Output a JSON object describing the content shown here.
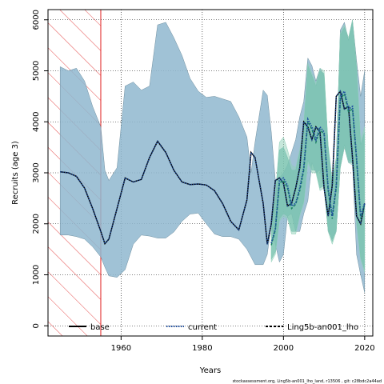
{
  "chart_data": {
    "type": "line",
    "xlabel": "Years",
    "ylabel": "Recruits (age 3)",
    "xlim": [
      1942,
      2022
    ],
    "ylim": [
      -200,
      6200
    ],
    "x_ticks": [
      "1960",
      "1980",
      "2000",
      "2020"
    ],
    "y_ticks": [
      "0",
      "1000",
      "2000",
      "3000",
      "4000",
      "5000",
      "6000"
    ],
    "grid": true,
    "legend_position": "bottom",
    "hatched_region": {
      "x_start": 1942,
      "x_end": 1955,
      "color": "#e02020"
    },
    "footnote": "stockassessment.org, Ling5b-an001_lho_land, r13506 , git: c28bdc2a44ad",
    "colors": {
      "base_band": "#8fb7cf",
      "base_band_edge": "#6f8fa0",
      "current_band": "#5fb3a6",
      "other_band": "#8fcfb8",
      "base_line": "#000000",
      "current_line": "#1f4fa0",
      "other_line": "#1a8060"
    },
    "series": [
      {
        "name": "base",
        "line_style": "solid",
        "x": [
          1945,
          1947,
          1949,
          1951,
          1953,
          1955,
          1956,
          1957,
          1959,
          1961,
          1963,
          1965,
          1967,
          1969,
          1971,
          1973,
          1975,
          1977,
          1979,
          1981,
          1983,
          1985,
          1987,
          1989,
          1991,
          1992,
          1993,
          1995,
          1996,
          1997,
          1998,
          1999,
          2000,
          2001,
          2002,
          2003,
          2004,
          2005,
          2006,
          2007,
          2008,
          2009,
          2010,
          2011,
          2012,
          2013,
          2014,
          2015,
          2016,
          2017,
          2018,
          2019,
          2020
        ],
        "mid": [
          3020,
          3000,
          2930,
          2700,
          2300,
          1850,
          1610,
          1700,
          2300,
          2900,
          2820,
          2870,
          3300,
          3620,
          3400,
          3050,
          2820,
          2770,
          2780,
          2760,
          2650,
          2400,
          2050,
          1880,
          2470,
          3400,
          3300,
          2400,
          1600,
          2000,
          2850,
          2900,
          2800,
          2350,
          2400,
          2700,
          3100,
          4000,
          3900,
          3650,
          3900,
          3800,
          2700,
          2150,
          2750,
          4500,
          4600,
          4250,
          4300,
          3300,
          2150,
          2000,
          2400
        ],
        "upper": [
          5080,
          5000,
          5050,
          4800,
          4300,
          3900,
          3050,
          2850,
          3100,
          4700,
          4780,
          4620,
          4700,
          5900,
          5950,
          5650,
          5300,
          4850,
          4600,
          4480,
          4500,
          4450,
          4400,
          4100,
          3700,
          3000,
          3600,
          4620,
          4520,
          3800,
          2850,
          2900,
          3000,
          3150,
          3400,
          3650,
          4100,
          4400,
          5250,
          5100,
          4800,
          5050,
          4900,
          3500,
          2800,
          3300,
          5800,
          5950,
          5600,
          6000,
          5200,
          4500,
          5000
        ],
        "lower": [
          1780,
          1780,
          1750,
          1700,
          1550,
          1350,
          1150,
          980,
          950,
          1100,
          1600,
          1780,
          1760,
          1720,
          1720,
          1840,
          2050,
          2190,
          2210,
          2000,
          1800,
          1750,
          1750,
          1700,
          1500,
          1350,
          1200,
          1200,
          1400,
          2000,
          1600,
          1250,
          1400,
          2150,
          2200,
          1850,
          1850,
          2200,
          2450,
          3200,
          3000,
          3050,
          2700,
          1850,
          1700,
          1850,
          3100,
          3500,
          3200,
          3200,
          1400,
          1000,
          650
        ]
      },
      {
        "name": "current",
        "line_style": "dotted",
        "x": [
          1997,
          1998,
          1999,
          2000,
          2001,
          2002,
          2003,
          2004,
          2005,
          2006,
          2007,
          2008,
          2009,
          2010,
          2011,
          2012,
          2013,
          2014,
          2015,
          2016,
          2017,
          2018,
          2019,
          2020
        ],
        "mid": [
          1620,
          1900,
          2850,
          2900,
          2750,
          2350,
          2400,
          2700,
          3100,
          4050,
          3900,
          3650,
          3900,
          3800,
          2700,
          2150,
          2750,
          4500,
          4600,
          4250,
          4300,
          3300,
          2150,
          2400
        ],
        "upper": [
          2000,
          2500,
          3450,
          3500,
          3300,
          3050,
          3050,
          3400,
          3900,
          5100,
          4900,
          4700,
          5000,
          4950,
          3500,
          2800,
          3250,
          5700,
          5850,
          5600,
          5950,
          5000,
          3550,
          3800
        ],
        "lower": [
          1300,
          1450,
          2100,
          2200,
          2150,
          1850,
          1850,
          2200,
          2450,
          3250,
          3050,
          3050,
          2700,
          2750,
          1900,
          1650,
          1900,
          3150,
          3550,
          3250,
          3200,
          2050,
          1350,
          1100
        ]
      },
      {
        "name": "Ling5b-an001_lho",
        "line_style": "dashed",
        "x": [
          1997,
          1998,
          1999,
          2000,
          2001,
          2002,
          2003,
          2004,
          2005,
          2006,
          2007,
          2008,
          2009,
          2010,
          2011,
          2012,
          2013,
          2014,
          2015,
          2016,
          2017,
          2018,
          2019,
          2020
        ],
        "mid": [
          1580,
          1880,
          2800,
          2850,
          2700,
          2300,
          2380,
          2650,
          3050,
          4000,
          3850,
          3600,
          3850,
          3750,
          2650,
          2100,
          2700,
          4450,
          4550,
          4200,
          4250,
          3250,
          2100,
          2380
        ],
        "upper": [
          2050,
          2550,
          3600,
          3700,
          3450,
          3150,
          3100,
          3450,
          3950,
          5150,
          4950,
          4750,
          5050,
          5000,
          3550,
          2850,
          3300,
          5750,
          5900,
          5650,
          6000,
          5100,
          3650,
          3900
        ],
        "lower": [
          1250,
          1400,
          2050,
          2150,
          2100,
          1800,
          1800,
          2150,
          2400,
          3200,
          3000,
          3000,
          2650,
          2700,
          1850,
          1600,
          1850,
          3100,
          3500,
          3200,
          3150,
          2000,
          1300,
          1050
        ]
      }
    ]
  }
}
